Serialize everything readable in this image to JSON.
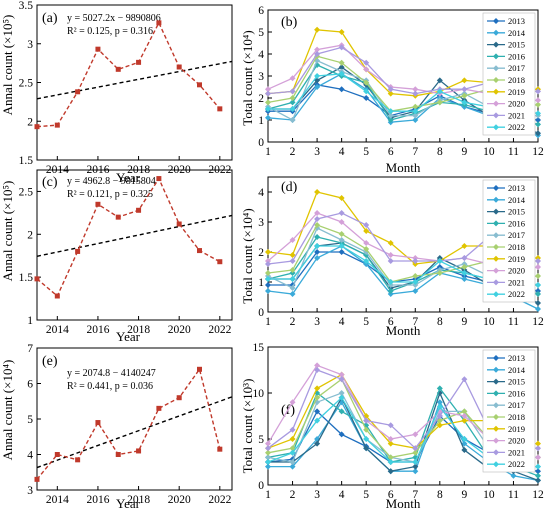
{
  "chart_data": [
    {
      "panel": "(a)",
      "type": "line",
      "xlabel": "Year",
      "ylabel": "Annal count (×10⁵)",
      "x": [
        2013,
        2014,
        2015,
        2016,
        2017,
        2018,
        2019,
        2020,
        2021,
        2022
      ],
      "values": [
        1.93,
        1.95,
        2.38,
        2.93,
        2.67,
        2.76,
        3.27,
        2.7,
        2.47,
        2.16
      ],
      "trend": {
        "slope": 5027.2,
        "intercept": -9890806,
        "scale": 100000
      },
      "annotations": [
        "y = 5027.2x − 9890806",
        "R² = 0.125, p = 0.316"
      ],
      "xlim": [
        2013,
        2022.6
      ],
      "ylim": [
        1.5,
        3.5
      ],
      "xticks": [
        "2014",
        "2016",
        "2018",
        "2020",
        "2022"
      ],
      "yticks": [
        "1.5",
        "2",
        "2.5",
        "3",
        "3.5"
      ],
      "series_color": "#c0392b",
      "trend_color": "#000000"
    },
    {
      "panel": "(c)",
      "type": "line",
      "xlabel": "Year",
      "ylabel": "Annal count (×10⁵)",
      "x": [
        2013,
        2014,
        2015,
        2016,
        2017,
        2018,
        2019,
        2020,
        2021,
        2022
      ],
      "values": [
        1.48,
        1.28,
        1.8,
        2.35,
        2.2,
        2.28,
        2.65,
        2.12,
        1.81,
        1.68
      ],
      "trend": {
        "slope": 4962.8,
        "intercept": -9815804,
        "scale": 100000
      },
      "annotations": [
        "y = 4962.8 − 9815804",
        "R² = 0.121, p = 0.325"
      ],
      "xlim": [
        2013,
        2022.6
      ],
      "ylim": [
        1,
        2.75
      ],
      "xticks": [
        "2014",
        "2016",
        "2018",
        "2020",
        "2022"
      ],
      "yticks": [
        "1",
        "1.5",
        "2",
        "2.5"
      ],
      "series_color": "#c0392b",
      "trend_color": "#000000"
    },
    {
      "panel": "(e)",
      "type": "line",
      "xlabel": "Year",
      "ylabel": "Annal count (×10⁴)",
      "x": [
        2013,
        2014,
        2015,
        2016,
        2017,
        2018,
        2019,
        2020,
        2021,
        2022
      ],
      "values": [
        3.3,
        4.0,
        3.85,
        4.9,
        4.0,
        4.1,
        5.3,
        5.6,
        6.4,
        4.15
      ],
      "trend": {
        "slope": 2074.8,
        "intercept": -4140247,
        "scale": 10000
      },
      "annotations": [
        "y = 2074.8 − 4140247",
        "R² = 0.441, p = 0.036"
      ],
      "xlim": [
        2013,
        2022.6
      ],
      "ylim": [
        3,
        7
      ],
      "xticks": [
        "2014",
        "2016",
        "2018",
        "2020",
        "2022"
      ],
      "yticks": [
        "3",
        "4",
        "5",
        "6",
        "7"
      ],
      "series_color": "#c0392b",
      "trend_color": "#000000"
    },
    {
      "panel": "(b)",
      "type": "line",
      "xlabel": "Month",
      "ylabel": "Total count (×10⁴)",
      "x": [
        1,
        2,
        3,
        4,
        5,
        6,
        7,
        8,
        9,
        10,
        11,
        12
      ],
      "xlim": [
        1,
        12
      ],
      "ylim": [
        0,
        6
      ],
      "xticks": [
        "1",
        "2",
        "3",
        "4",
        "5",
        "6",
        "7",
        "8",
        "9",
        "10",
        "11",
        "12"
      ],
      "yticks": [
        "0",
        "1",
        "2",
        "3",
        "4",
        "5",
        "6"
      ],
      "series": [
        {
          "name": "2013",
          "color": "#1f6fbf",
          "values": [
            1.4,
            1.4,
            2.6,
            2.4,
            2.0,
            1.2,
            1.5,
            2.1,
            1.6,
            1.3,
            1.2,
            1.0
          ]
        },
        {
          "name": "2014",
          "color": "#3aaad9",
          "values": [
            1.1,
            1.0,
            2.5,
            3.1,
            2.4,
            0.9,
            1.0,
            2.0,
            1.6,
            1.2,
            0.7,
            0.3
          ]
        },
        {
          "name": "2015",
          "color": "#2a6a8a",
          "values": [
            1.5,
            1.5,
            2.8,
            3.4,
            2.6,
            1.1,
            1.4,
            2.8,
            1.9,
            1.2,
            0.9,
            0.4
          ]
        },
        {
          "name": "2016",
          "color": "#2fb0b0",
          "values": [
            1.5,
            1.8,
            3.5,
            3.0,
            2.7,
            1.0,
            1.3,
            1.8,
            1.7,
            1.4,
            1.1,
            0.8
          ]
        },
        {
          "name": "2017",
          "color": "#88bdd0",
          "values": [
            1.6,
            1.0,
            3.7,
            3.2,
            2.8,
            1.2,
            1.2,
            1.9,
            2.2,
            1.6,
            1.2,
            1.2
          ]
        },
        {
          "name": "2018",
          "color": "#a8d070",
          "values": [
            1.8,
            2.0,
            3.9,
            3.6,
            2.7,
            1.4,
            1.6,
            1.8,
            2.1,
            2.4,
            1.5,
            1.7
          ]
        },
        {
          "name": "2019",
          "color": "#e0c400",
          "values": [
            2.2,
            2.3,
            5.1,
            5.0,
            3.3,
            2.2,
            2.1,
            2.3,
            2.8,
            2.7,
            2.3,
            2.4
          ]
        },
        {
          "name": "2020",
          "color": "#d4a0d8",
          "values": [
            2.4,
            2.9,
            4.2,
            4.4,
            3.3,
            2.5,
            2.4,
            2.2,
            2.4,
            2.2,
            1.8,
            1.9
          ]
        },
        {
          "name": "2021",
          "color": "#a89ae0",
          "values": [
            2.2,
            2.3,
            4.0,
            4.3,
            3.6,
            2.4,
            2.2,
            2.4,
            2.4,
            2.7,
            2.3,
            2.3
          ]
        },
        {
          "name": "2022",
          "color": "#40d0e0",
          "values": [
            1.5,
            1.5,
            3.0,
            3.1,
            2.3,
            1.4,
            1.4,
            2.3,
            1.8,
            1.6,
            1.5,
            1.3
          ]
        }
      ]
    },
    {
      "panel": "(d)",
      "type": "line",
      "xlabel": "Month",
      "ylabel": "Total count (×10⁴)",
      "x": [
        1,
        2,
        3,
        4,
        5,
        6,
        7,
        8,
        9,
        10,
        11,
        12
      ],
      "xlim": [
        1,
        12
      ],
      "ylim": [
        0,
        4.5
      ],
      "xticks": [
        "1",
        "2",
        "3",
        "4",
        "5",
        "6",
        "7",
        "8",
        "9",
        "10",
        "11",
        "12"
      ],
      "yticks": [
        "0",
        "1",
        "2",
        "3",
        "4"
      ],
      "series": [
        {
          "name": "2013",
          "color": "#1f6fbf",
          "values": [
            0.9,
            0.9,
            2.0,
            2.0,
            1.6,
            1.0,
            1.1,
            1.5,
            1.2,
            1.0,
            0.9,
            0.7
          ]
        },
        {
          "name": "2014",
          "color": "#3aaad9",
          "values": [
            0.7,
            0.6,
            1.8,
            2.2,
            1.6,
            0.6,
            0.7,
            1.3,
            1.1,
            0.9,
            0.5,
            0.1
          ]
        },
        {
          "name": "2015",
          "color": "#2a6a8a",
          "values": [
            1.1,
            1.1,
            2.2,
            2.3,
            1.9,
            0.8,
            1.0,
            1.8,
            1.4,
            0.9,
            0.7,
            0.3
          ]
        },
        {
          "name": "2016",
          "color": "#2fb0b0",
          "values": [
            1.1,
            1.3,
            2.5,
            2.3,
            1.9,
            0.7,
            1.0,
            1.4,
            1.3,
            1.1,
            0.9,
            0.6
          ]
        },
        {
          "name": "2017",
          "color": "#88bdd0",
          "values": [
            1.2,
            0.8,
            2.8,
            2.4,
            2.0,
            0.9,
            0.9,
            1.4,
            1.6,
            1.2,
            0.8,
            0.9
          ]
        },
        {
          "name": "2018",
          "color": "#a8d070",
          "values": [
            1.3,
            1.4,
            2.9,
            2.6,
            2.1,
            1.0,
            1.2,
            1.3,
            1.5,
            1.7,
            1.1,
            1.2
          ]
        },
        {
          "name": "2019",
          "color": "#e0c400",
          "values": [
            2.0,
            1.9,
            4.0,
            3.8,
            2.7,
            2.3,
            1.6,
            1.7,
            2.2,
            2.2,
            1.8,
            1.8
          ]
        },
        {
          "name": "2020",
          "color": "#d4a0d8",
          "values": [
            1.7,
            2.4,
            3.3,
            3.0,
            2.3,
            1.9,
            1.8,
            1.7,
            1.8,
            1.6,
            1.3,
            1.5
          ]
        },
        {
          "name": "2021",
          "color": "#a89ae0",
          "values": [
            1.6,
            1.7,
            3.1,
            3.3,
            2.9,
            1.7,
            1.7,
            1.7,
            1.8,
            2.5,
            1.7,
            1.7
          ]
        },
        {
          "name": "2022",
          "color": "#40d0e0",
          "values": [
            1.1,
            1.1,
            2.2,
            2.2,
            1.7,
            1.0,
            1.0,
            1.7,
            1.3,
            1.1,
            1.1,
            0.9
          ]
        }
      ]
    },
    {
      "panel": "(f)",
      "type": "line",
      "xlabel": "Month",
      "ylabel": "Total count (×10³)",
      "x": [
        1,
        2,
        3,
        4,
        5,
        6,
        7,
        8,
        9,
        10,
        11,
        12
      ],
      "xlim": [
        1,
        12
      ],
      "ylim": [
        0,
        15
      ],
      "xticks": [
        "1",
        "2",
        "3",
        "4",
        "5",
        "6",
        "7",
        "8",
        "9",
        "10",
        "11",
        "12"
      ],
      "yticks": [
        "0",
        "5",
        "10",
        "15"
      ],
      "series": [
        {
          "name": "2013",
          "color": "#1f6fbf",
          "values": [
            2.5,
            2.8,
            8.0,
            5.5,
            4.2,
            2.5,
            2.5,
            7.5,
            5.0,
            3.5,
            2.0,
            1.5
          ]
        },
        {
          "name": "2014",
          "color": "#3aaad9",
          "values": [
            2.0,
            2.0,
            5.0,
            9.0,
            4.0,
            1.5,
            1.5,
            9.0,
            4.5,
            2.5,
            1.0,
            0.5
          ]
        },
        {
          "name": "2015",
          "color": "#2a6a8a",
          "values": [
            2.5,
            2.5,
            4.5,
            9.5,
            4.0,
            1.5,
            2.0,
            10.0,
            3.8,
            1.8,
            1.5,
            0.5
          ]
        },
        {
          "name": "2016",
          "color": "#2fb0b0",
          "values": [
            3.0,
            3.5,
            10.0,
            8.0,
            6.5,
            2.5,
            3.0,
            10.5,
            7.0,
            3.0,
            2.0,
            1.0
          ]
        },
        {
          "name": "2017",
          "color": "#88bdd0",
          "values": [
            3.0,
            2.5,
            9.0,
            10.0,
            5.0,
            3.0,
            2.5,
            8.0,
            8.0,
            4.0,
            2.0,
            2.0
          ]
        },
        {
          "name": "2018",
          "color": "#a8d070",
          "values": [
            3.5,
            4.0,
            9.5,
            11.5,
            6.0,
            3.0,
            3.5,
            7.0,
            8.0,
            5.0,
            3.0,
            3.0
          ]
        },
        {
          "name": "2019",
          "color": "#e0c400",
          "values": [
            4.0,
            5.0,
            10.5,
            12.0,
            7.5,
            4.5,
            4.0,
            6.5,
            7.0,
            7.0,
            4.5,
            4.5
          ]
        },
        {
          "name": "2020",
          "color": "#d4a0d8",
          "values": [
            4.5,
            9.0,
            13.0,
            12.0,
            7.0,
            5.0,
            5.5,
            8.0,
            7.5,
            5.0,
            3.0,
            3.0
          ]
        },
        {
          "name": "2021",
          "color": "#a89ae0",
          "values": [
            4.0,
            6.0,
            12.5,
            11.5,
            7.0,
            6.5,
            4.0,
            7.5,
            11.5,
            6.0,
            4.0,
            4.0
          ]
        },
        {
          "name": "2022",
          "color": "#40d0e0",
          "values": [
            2.5,
            3.5,
            7.0,
            9.5,
            5.0,
            2.5,
            2.5,
            8.5,
            5.0,
            3.0,
            2.0,
            2.0
          ]
        }
      ]
    }
  ]
}
